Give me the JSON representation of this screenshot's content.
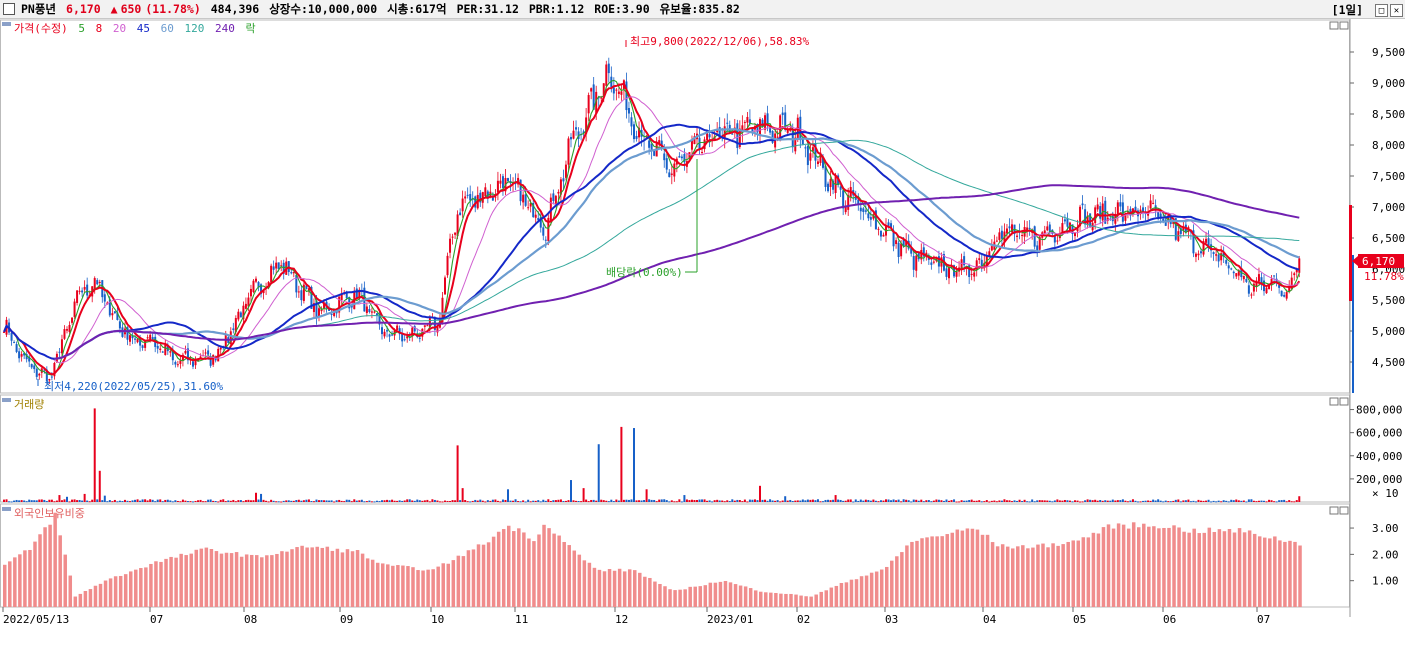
{
  "header": {
    "name": "PN풍년",
    "price": "6,170",
    "arrow": "▲",
    "change": "650",
    "change_pct": "(11.78%)",
    "volume": "484,396",
    "shares": "상장수:10,000,000",
    "mcap": "시총:617억",
    "per": "PER:31.12",
    "pbr": "PBR:1.12",
    "roe": "ROE:3.90",
    "float": "유보율:835.82",
    "period": "[1일]"
  },
  "legend": {
    "price_label": "가격(수정)",
    "ma5": "5",
    "ma8": "8",
    "ma20": "20",
    "ma45": "45",
    "ma60": "60",
    "ma120": "120",
    "ma240": "240",
    "rak": "락"
  },
  "annotations": {
    "high": "최고9,800(2022/12/06),58.83%",
    "low": "최저4,220(2022/05/25),31.60%",
    "dividend": "배당락(0.00%)",
    "last_price": "6,170",
    "last_pct": "11.78%"
  },
  "panels": {
    "volume_label": "거래량",
    "foreign_label": "외국인보유비중",
    "volume_unit": "× 10"
  },
  "colors": {
    "up": "#e8001c",
    "down": "#1660c8",
    "ma5": "#2aa02a",
    "ma8": "#e8001c",
    "ma20": "#d060d0",
    "ma45": "#1428c8",
    "ma60": "#6c9cd0",
    "ma120": "#34a89c",
    "ma240": "#7020b0",
    "foreign": "#f08c8c"
  },
  "chart_data": [
    {
      "type": "candlestick",
      "title": "가격(수정)",
      "ylim": [
        4000,
        10000
      ],
      "yticks": [
        "9,500",
        "9,000",
        "8,500",
        "8,000",
        "7,500",
        "7,000",
        "6,500",
        "6,000",
        "5,500",
        "5,000",
        "4,500"
      ],
      "ytick_values": [
        9500,
        9000,
        8500,
        8000,
        7500,
        7000,
        6500,
        6000,
        5500,
        5000,
        4500
      ],
      "x_labels": [
        "2022/05/13",
        "07",
        "08",
        "09",
        "10",
        "11",
        "12",
        "2023/01",
        "02",
        "03",
        "04",
        "05",
        "06",
        "07"
      ],
      "series_names": [
        "5",
        "8",
        "20",
        "45",
        "60",
        "120",
        "240"
      ],
      "price_keypoints": [
        [
          0,
          5100
        ],
        [
          8,
          4500
        ],
        [
          18,
          4220
        ],
        [
          30,
          5600
        ],
        [
          36,
          5800
        ],
        [
          44,
          5200
        ],
        [
          52,
          4800
        ],
        [
          58,
          4900
        ],
        [
          68,
          4500
        ],
        [
          84,
          4600
        ],
        [
          100,
          5700
        ],
        [
          110,
          6100
        ],
        [
          125,
          5300
        ],
        [
          140,
          5600
        ],
        [
          150,
          5000
        ],
        [
          160,
          4900
        ],
        [
          172,
          5100
        ],
        [
          180,
          7000
        ],
        [
          200,
          7400
        ],
        [
          215,
          6700
        ],
        [
          225,
          8000
        ],
        [
          240,
          9200
        ],
        [
          255,
          8000
        ],
        [
          265,
          7600
        ],
        [
          280,
          8100
        ],
        [
          300,
          8300
        ],
        [
          315,
          8200
        ],
        [
          330,
          7300
        ],
        [
          345,
          6800
        ],
        [
          360,
          6200
        ],
        [
          375,
          6000
        ],
        [
          385,
          6000
        ],
        [
          395,
          6600
        ],
        [
          410,
          6500
        ],
        [
          425,
          6800
        ],
        [
          440,
          6900
        ],
        [
          455,
          6900
        ],
        [
          470,
          6500
        ],
        [
          485,
          6100
        ],
        [
          495,
          5700
        ],
        [
          505,
          5800
        ],
        [
          510,
          5600
        ],
        [
          514,
          6170
        ]
      ],
      "high": 9800,
      "low": 4220,
      "last": 6170,
      "change_pct": 11.78
    },
    {
      "type": "bar",
      "title": "거래량",
      "ylim": [
        0,
        900000
      ],
      "yticks": [
        "800,000",
        "600,000",
        "400,000",
        "200,000"
      ],
      "ytick_values": [
        800000,
        600000,
        400000,
        200000
      ],
      "spikes": [
        [
          22,
          60000
        ],
        [
          25,
          45000
        ],
        [
          32,
          70000
        ],
        [
          36,
          810000
        ],
        [
          38,
          270000
        ],
        [
          40,
          55000
        ],
        [
          100,
          80000
        ],
        [
          102,
          70000
        ],
        [
          120,
          20000
        ],
        [
          180,
          490000
        ],
        [
          182,
          120000
        ],
        [
          200,
          110000
        ],
        [
          225,
          190000
        ],
        [
          230,
          120000
        ],
        [
          236,
          500000
        ],
        [
          245,
          650000
        ],
        [
          250,
          640000
        ],
        [
          255,
          110000
        ],
        [
          270,
          60000
        ],
        [
          300,
          140000
        ],
        [
          310,
          50000
        ],
        [
          330,
          60000
        ],
        [
          514,
          50000
        ]
      ],
      "base_volume": 14000
    },
    {
      "type": "bar",
      "title": "외국인보유비중",
      "ylim": [
        0,
        3.8
      ],
      "yticks": [
        "3.00",
        "2.00",
        "1.00"
      ],
      "ytick_values": [
        3,
        2,
        1
      ],
      "keypoints": [
        [
          0,
          1.6
        ],
        [
          10,
          2.2
        ],
        [
          20,
          3.5
        ],
        [
          28,
          0.4
        ],
        [
          40,
          1.0
        ],
        [
          60,
          1.7
        ],
        [
          80,
          2.2
        ],
        [
          100,
          1.9
        ],
        [
          120,
          2.3
        ],
        [
          140,
          2.1
        ],
        [
          150,
          1.6
        ],
        [
          170,
          1.4
        ],
        [
          190,
          2.4
        ],
        [
          200,
          3.1
        ],
        [
          210,
          2.6
        ],
        [
          215,
          3.2
        ],
        [
          225,
          2.2
        ],
        [
          235,
          1.4
        ],
        [
          250,
          1.4
        ],
        [
          265,
          0.6
        ],
        [
          285,
          1.0
        ],
        [
          300,
          0.6
        ],
        [
          320,
          0.4
        ],
        [
          335,
          1.0
        ],
        [
          350,
          1.5
        ],
        [
          360,
          2.5
        ],
        [
          375,
          2.8
        ],
        [
          385,
          3.0
        ],
        [
          395,
          2.3
        ],
        [
          410,
          2.3
        ],
        [
          425,
          2.5
        ],
        [
          440,
          3.1
        ],
        [
          460,
          3.1
        ],
        [
          470,
          2.9
        ],
        [
          490,
          2.9
        ],
        [
          505,
          2.6
        ],
        [
          514,
          2.4
        ]
      ]
    }
  ]
}
